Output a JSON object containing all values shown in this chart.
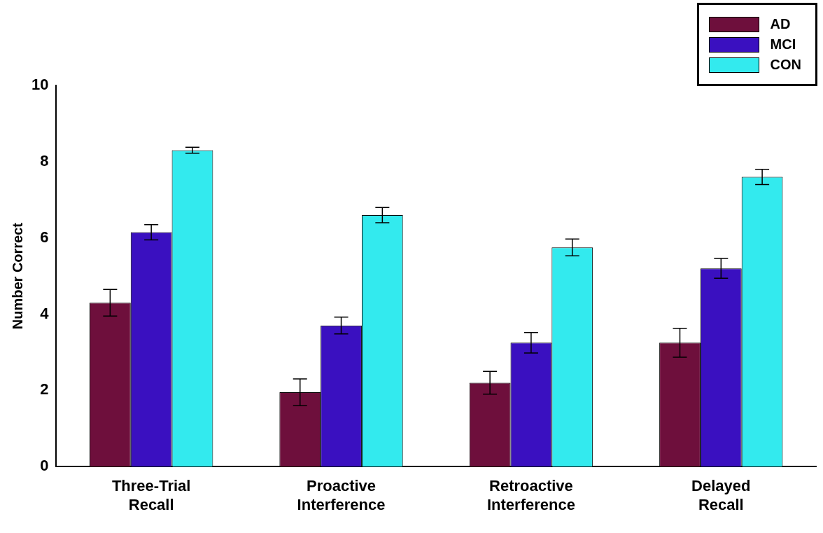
{
  "chart_data": {
    "type": "bar",
    "ylabel": "Number Correct",
    "categories": [
      "Three-Trial Recall",
      "Proactive Interference",
      "Retroactive Interference",
      "Delayed Recall"
    ],
    "series": [
      {
        "name": "AD",
        "color": "#6e0f3c",
        "values": [
          4.3,
          1.95,
          2.2,
          3.25
        ],
        "errors": [
          0.35,
          0.35,
          0.3,
          0.38
        ]
      },
      {
        "name": "MCI",
        "color": "#3a10c0",
        "values": [
          6.15,
          3.7,
          3.25,
          5.2
        ],
        "errors": [
          0.2,
          0.22,
          0.27,
          0.26
        ]
      },
      {
        "name": "CON",
        "color": "#33eaee",
        "values": [
          8.3,
          6.6,
          5.75,
          7.6
        ],
        "errors": [
          0.08,
          0.2,
          0.22,
          0.2
        ]
      }
    ],
    "ylim": [
      0,
      10
    ],
    "yticks": [
      0,
      2,
      4,
      6,
      8,
      10
    ],
    "grid": false,
    "legend": "top right"
  }
}
